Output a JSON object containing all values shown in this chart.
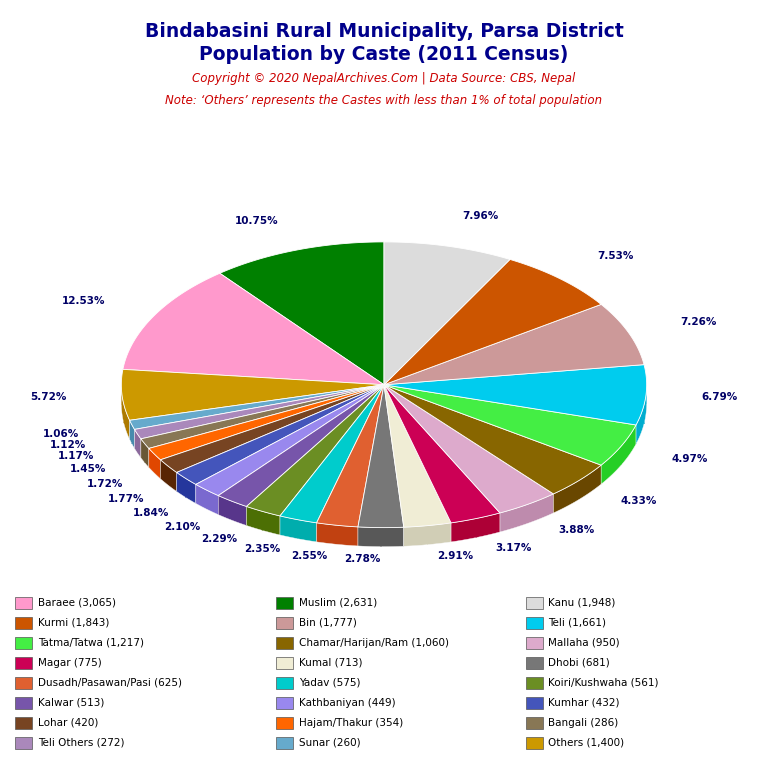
{
  "title_line1": "Bindabasini Rural Municipality, Parsa District",
  "title_line2": "Population by Caste (2011 Census)",
  "copyright": "Copyright © 2020 NepalArchives.Com | Data Source: CBS, Nepal",
  "note": "Note: ‘Others’ represents the Castes with less than 1% of total population",
  "title_color": "#00008B",
  "copyright_color": "#CC0000",
  "note_color": "#CC0000",
  "background_color": "#FFFFFF",
  "slices": [
    {
      "label": "Muslim",
      "value": 2631,
      "color": "#008000",
      "pct": 10.75
    },
    {
      "label": "Baraee",
      "value": 3065,
      "color": "#FF99CC",
      "pct": 12.53
    },
    {
      "label": "Others",
      "value": 1400,
      "color": "#CC9900",
      "pct": 5.72
    },
    {
      "label": "Sunar",
      "value": 260,
      "color": "#66AACC",
      "pct": 1.06
    },
    {
      "label": "Teli Others",
      "value": 272,
      "color": "#AA88BB",
      "pct": 1.12
    },
    {
      "label": "Bangali",
      "value": 286,
      "color": "#887755",
      "pct": 1.17
    },
    {
      "label": "Hajam/Thakur",
      "value": 354,
      "color": "#FF6600",
      "pct": 1.45
    },
    {
      "label": "Lohar",
      "value": 420,
      "color": "#774422",
      "pct": 1.72
    },
    {
      "label": "Kumhar",
      "value": 432,
      "color": "#4455BB",
      "pct": 1.77
    },
    {
      "label": "Kathbaniyan",
      "value": 449,
      "color": "#9988EE",
      "pct": 1.84
    },
    {
      "label": "Kalwar",
      "value": 513,
      "color": "#7755AA",
      "pct": 2.1
    },
    {
      "label": "Koiri/Kushwaha",
      "value": 561,
      "color": "#6B8E23",
      "pct": 2.29
    },
    {
      "label": "Yadav",
      "value": 575,
      "color": "#00CCCC",
      "pct": 2.35
    },
    {
      "label": "Dusadh/Pasawan/Pasi",
      "value": 625,
      "color": "#E06030",
      "pct": 2.55
    },
    {
      "label": "Dhobi",
      "value": 681,
      "color": "#777777",
      "pct": 2.78
    },
    {
      "label": "Kumal",
      "value": 713,
      "color": "#F0EDD5",
      "pct": 2.91
    },
    {
      "label": "Magar",
      "value": 775,
      "color": "#CC0055",
      "pct": 3.17
    },
    {
      "label": "Mallaha",
      "value": 950,
      "color": "#DDAACC",
      "pct": 3.88
    },
    {
      "label": "Chamar/Harijan/Ram",
      "value": 1060,
      "color": "#886600",
      "pct": 4.33
    },
    {
      "label": "Tatma/Tatwa",
      "value": 1217,
      "color": "#44EE44",
      "pct": 4.97
    },
    {
      "label": "Teli",
      "value": 1661,
      "color": "#00CCEE",
      "pct": 6.79
    },
    {
      "label": "Bin",
      "value": 1777,
      "color": "#CC9999",
      "pct": 7.26
    },
    {
      "label": "Kurmi",
      "value": 1843,
      "color": "#CC5500",
      "pct": 7.53
    },
    {
      "label": "Kanu",
      "value": 1948,
      "color": "#DCDCDC",
      "pct": 7.96
    }
  ],
  "legend_order": [
    {
      "label": "Baraee",
      "value": 3065,
      "color": "#FF99CC"
    },
    {
      "label": "Kurmi",
      "value": 1843,
      "color": "#CC5500"
    },
    {
      "label": "Tatma/Tatwa",
      "value": 1217,
      "color": "#44EE44"
    },
    {
      "label": "Magar",
      "value": 775,
      "color": "#CC0055"
    },
    {
      "label": "Dusadh/Pasawan/Pasi",
      "value": 625,
      "color": "#E06030"
    },
    {
      "label": "Kalwar",
      "value": 513,
      "color": "#7755AA"
    },
    {
      "label": "Lohar",
      "value": 420,
      "color": "#774422"
    },
    {
      "label": "Teli Others",
      "value": 272,
      "color": "#AA88BB"
    },
    {
      "label": "Muslim",
      "value": 2631,
      "color": "#008000"
    },
    {
      "label": "Bin",
      "value": 1777,
      "color": "#CC9999"
    },
    {
      "label": "Chamar/Harijan/Ram",
      "value": 1060,
      "color": "#886600"
    },
    {
      "label": "Kumal",
      "value": 713,
      "color": "#F0EDD5"
    },
    {
      "label": "Yadav",
      "value": 575,
      "color": "#00CCCC"
    },
    {
      "label": "Kathbaniyan",
      "value": 449,
      "color": "#9988EE"
    },
    {
      "label": "Hajam/Thakur",
      "value": 354,
      "color": "#FF6600"
    },
    {
      "label": "Sunar",
      "value": 260,
      "color": "#66AACC"
    },
    {
      "label": "Kanu",
      "value": 1948,
      "color": "#DCDCDC"
    },
    {
      "label": "Teli",
      "value": 1661,
      "color": "#00CCEE"
    },
    {
      "label": "Mallaha",
      "value": 950,
      "color": "#DDAACC"
    },
    {
      "label": "Dhobi",
      "value": 681,
      "color": "#777777"
    },
    {
      "label": "Koiri/Kushwaha",
      "value": 561,
      "color": "#6B8E23"
    },
    {
      "label": "Kumhar",
      "value": 432,
      "color": "#4455BB"
    },
    {
      "label": "Bangali",
      "value": 286,
      "color": "#887755"
    },
    {
      "label": "Others",
      "value": 1400,
      "color": "#CC9900"
    }
  ]
}
